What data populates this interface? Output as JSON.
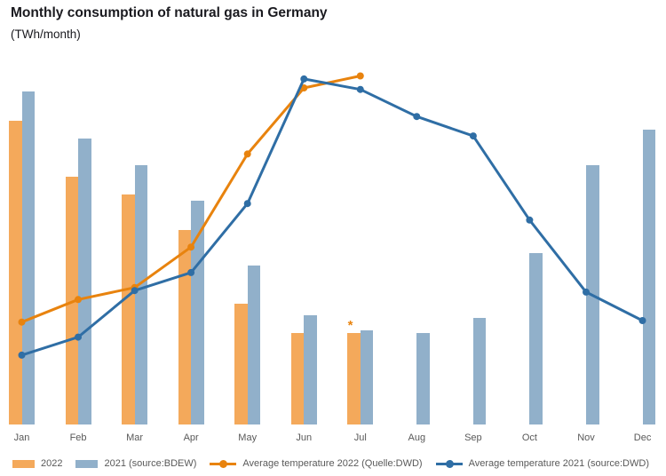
{
  "title": "Monthly consumption of natural gas in Germany",
  "subtitle": "(TWh/month)",
  "annotation": {
    "text": "*",
    "month": "Jul",
    "series": "2022"
  },
  "legend": {
    "position": "bottom",
    "items": [
      {
        "label": "2022",
        "marker": "bar",
        "color": "#F4A95B"
      },
      {
        "label": "2021 (source:BDEW)",
        "marker": "bar",
        "color": "#91B0CA"
      },
      {
        "label": "Average temperature 2022 (Quelle:DWD)",
        "marker": "line",
        "color": "#E8830E"
      },
      {
        "label": "Average temperature 2021 (source:DWD)",
        "marker": "line",
        "color": "#2F6EA5"
      }
    ]
  },
  "chart_data": {
    "type": "combo bar+line",
    "title": "Monthly consumption of natural gas in Germany",
    "ylabel": "TWh/month",
    "xlabel": "",
    "categories": [
      "Jan",
      "Feb",
      "Mar",
      "Apr",
      "May",
      "Jun",
      "Jul",
      "Aug",
      "Sep",
      "Oct",
      "Nov",
      "Dec"
    ],
    "gridlines": false,
    "y_axis_visible": false,
    "legend_position": "bottom",
    "consumption_axis_range_TWh": [
      0,
      128
    ],
    "temperature_axis_range_C": [
      -4,
      22
    ],
    "series": [
      {
        "name": "2022",
        "type": "bar",
        "axis": "consumption-TWh",
        "color": "#F4A95B",
        "values": [
          103,
          84,
          78,
          66,
          41,
          31,
          31,
          null,
          null,
          null,
          null,
          null
        ],
        "annotation_month": "Jul"
      },
      {
        "name": "2021 (source:BDEW)",
        "type": "bar",
        "axis": "consumption-TWh",
        "color": "#91B0CA",
        "values": [
          113,
          97,
          88,
          76,
          54,
          37,
          32,
          31,
          36,
          58,
          88,
          100
        ]
      },
      {
        "name": "Average temperature 2022 (Quelle:DWD)",
        "type": "line",
        "axis": "temperature-C",
        "color": "#E8830E",
        "values": [
          2.8,
          4.3,
          5.1,
          7.8,
          14.0,
          18.4,
          19.2,
          null,
          null,
          null,
          null,
          null
        ]
      },
      {
        "name": "Average temperature 2021 (source:DWD)",
        "type": "line",
        "axis": "temperature-C",
        "color": "#2F6EA5",
        "values": [
          0.6,
          1.8,
          4.9,
          6.1,
          10.7,
          19.0,
          18.3,
          16.5,
          15.2,
          9.6,
          4.8,
          2.9
        ]
      }
    ]
  }
}
